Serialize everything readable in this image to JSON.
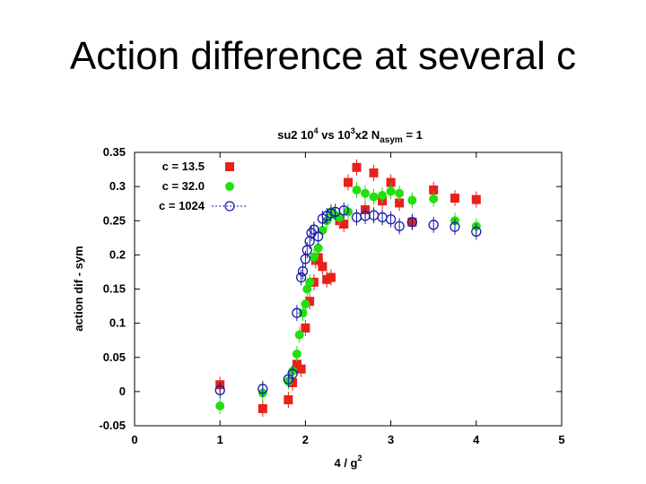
{
  "slide": {
    "title": "Action difference at several c"
  },
  "chart_data": {
    "type": "scatter",
    "title": {
      "base": "su2 10",
      "sup1": "4",
      "mid": " vs 10",
      "sup2": "3",
      "post": "x2 N",
      "sub": "asym",
      "tail": " = 1"
    },
    "xlabel": {
      "base": "4 / g",
      "sup": "2"
    },
    "ylabel": "action dif - sym",
    "xlim": [
      0,
      5
    ],
    "ylim": [
      -0.05,
      0.35
    ],
    "xticks": [
      0,
      1,
      2,
      3,
      4,
      5
    ],
    "xtick_labels": [
      "0",
      "1",
      "2",
      "3",
      "4",
      "5"
    ],
    "yticks": [
      -0.05,
      0,
      0.05,
      0.1,
      0.15,
      0.2,
      0.25,
      0.3,
      0.35
    ],
    "ytick_labels": [
      "-0.05",
      "0",
      "0.05",
      "0.1",
      "0.15",
      "0.2",
      "0.25",
      "0.3",
      "0.35"
    ],
    "legend_position": "top-left",
    "series": [
      {
        "name": "c = 13.5",
        "marker": "square",
        "color": "#e8211b",
        "points": [
          [
            1.0,
            0.01
          ],
          [
            1.5,
            -0.025
          ],
          [
            1.8,
            -0.012
          ],
          [
            1.85,
            0.013
          ],
          [
            1.9,
            0.04
          ],
          [
            1.95,
            0.033
          ],
          [
            2.0,
            0.093
          ],
          [
            2.05,
            0.132
          ],
          [
            2.1,
            0.16
          ],
          [
            2.12,
            0.192
          ],
          [
            2.15,
            0.196
          ],
          [
            2.2,
            0.183
          ],
          [
            2.25,
            0.164
          ],
          [
            2.3,
            0.167
          ],
          [
            2.4,
            0.25
          ],
          [
            2.45,
            0.245
          ],
          [
            2.5,
            0.306
          ],
          [
            2.6,
            0.328
          ],
          [
            2.7,
            0.266
          ],
          [
            2.8,
            0.32
          ],
          [
            2.9,
            0.279
          ],
          [
            3.0,
            0.306
          ],
          [
            3.1,
            0.276
          ],
          [
            3.25,
            0.248
          ],
          [
            3.5,
            0.295
          ],
          [
            3.75,
            0.283
          ],
          [
            4.0,
            0.281
          ]
        ]
      },
      {
        "name": "c = 32.0",
        "marker": "circle-filled",
        "color": "#22e010",
        "points": [
          [
            1.0,
            -0.021
          ],
          [
            1.5,
            -0.002
          ],
          [
            1.8,
            0.015
          ],
          [
            1.85,
            0.03
          ],
          [
            1.9,
            0.055
          ],
          [
            1.93,
            0.083
          ],
          [
            1.97,
            0.115
          ],
          [
            2.0,
            0.128
          ],
          [
            2.02,
            0.15
          ],
          [
            2.05,
            0.16
          ],
          [
            2.1,
            0.197
          ],
          [
            2.15,
            0.21
          ],
          [
            2.2,
            0.236
          ],
          [
            2.25,
            0.25
          ],
          [
            2.3,
            0.263
          ],
          [
            2.35,
            0.258
          ],
          [
            2.4,
            0.255
          ],
          [
            2.5,
            0.263
          ],
          [
            2.6,
            0.295
          ],
          [
            2.7,
            0.29
          ],
          [
            2.8,
            0.285
          ],
          [
            2.9,
            0.287
          ],
          [
            3.0,
            0.293
          ],
          [
            3.1,
            0.29
          ],
          [
            3.25,
            0.28
          ],
          [
            3.5,
            0.282
          ],
          [
            3.75,
            0.25
          ],
          [
            4.0,
            0.242
          ]
        ]
      },
      {
        "name": "c = 1024",
        "marker": "circle-open",
        "color": "#1a1aa8",
        "points": [
          [
            1.0,
            0.002
          ],
          [
            1.5,
            0.004
          ],
          [
            1.8,
            0.018
          ],
          [
            1.85,
            0.026
          ],
          [
            1.9,
            0.115
          ],
          [
            1.95,
            0.167
          ],
          [
            1.97,
            0.176
          ],
          [
            2.0,
            0.194
          ],
          [
            2.02,
            0.207
          ],
          [
            2.05,
            0.22
          ],
          [
            2.07,
            0.232
          ],
          [
            2.1,
            0.237
          ],
          [
            2.15,
            0.227
          ],
          [
            2.2,
            0.253
          ],
          [
            2.25,
            0.257
          ],
          [
            2.3,
            0.261
          ],
          [
            2.35,
            0.263
          ],
          [
            2.45,
            0.265
          ],
          [
            2.6,
            0.255
          ],
          [
            2.7,
            0.257
          ],
          [
            2.8,
            0.258
          ],
          [
            2.9,
            0.255
          ],
          [
            3.0,
            0.252
          ],
          [
            3.1,
            0.242
          ],
          [
            3.25,
            0.248
          ],
          [
            3.5,
            0.244
          ],
          [
            3.75,
            0.241
          ],
          [
            4.0,
            0.234
          ]
        ]
      }
    ]
  }
}
